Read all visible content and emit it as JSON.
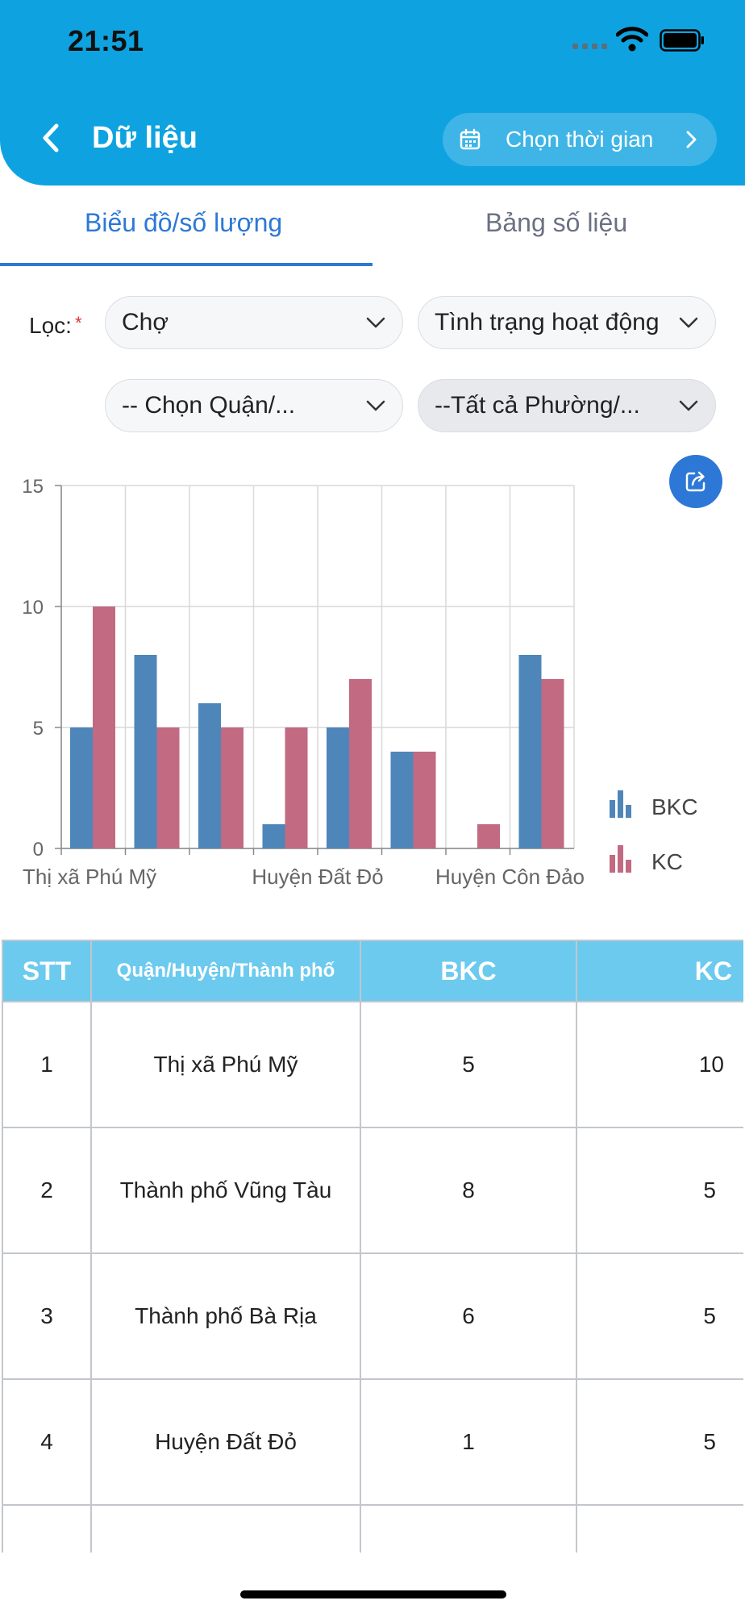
{
  "status": {
    "time": "21:51"
  },
  "header": {
    "title": "Dữ liệu",
    "time_button_label": "Chọn thời gian"
  },
  "tabs": [
    {
      "label": "Biểu đồ/số lượng",
      "active": true
    },
    {
      "label": "Bảng số liệu",
      "active": false
    }
  ],
  "filters": {
    "label": "Lọc:",
    "required_mark": "*",
    "type": "Chợ",
    "status": "Tình trạng hoạt động",
    "district": "-- Chọn Quận/...",
    "ward": "--Tất cả Phường/..."
  },
  "colors": {
    "header": "#0ea3e0",
    "accent": "#2d78d6",
    "bkc": "#4e86ba",
    "kc": "#c16a82",
    "table_header": "#6ccaef"
  },
  "chart_data": {
    "type": "bar",
    "categories": [
      "Thị xã Phú Mỹ",
      "Thành phố Vũng Tàu",
      "Thành phố Bà Rịa",
      "Huyện Đất Đỏ",
      "",
      "",
      "Huyện Côn Đảo",
      ""
    ],
    "visible_tick_labels": [
      "Thị xã Phú Mỹ",
      "Huyện Đất Đỏ",
      "Huyện Côn Đảo"
    ],
    "series": [
      {
        "name": "BKC",
        "values": [
          5,
          8,
          6,
          1,
          5,
          4,
          0,
          8
        ]
      },
      {
        "name": "KC",
        "values": [
          10,
          5,
          5,
          5,
          7,
          4,
          1,
          7
        ]
      }
    ],
    "ylim": [
      0,
      15
    ],
    "yticks": [
      0,
      5,
      10,
      15
    ],
    "grid": true,
    "legend": "right"
  },
  "table": {
    "headers": [
      "STT",
      "Quận/Huyện/Thành phố",
      "BKC",
      "KC"
    ],
    "rows": [
      [
        "1",
        "Thị xã Phú Mỹ",
        "5",
        "10"
      ],
      [
        "2",
        "Thành phố Vũng Tàu",
        "8",
        "5"
      ],
      [
        "3",
        "Thành phố Bà Rịa",
        "6",
        "5"
      ],
      [
        "4",
        "Huyện Đất Đỏ",
        "1",
        "5"
      ],
      [
        "",
        "",
        "",
        ""
      ]
    ]
  }
}
